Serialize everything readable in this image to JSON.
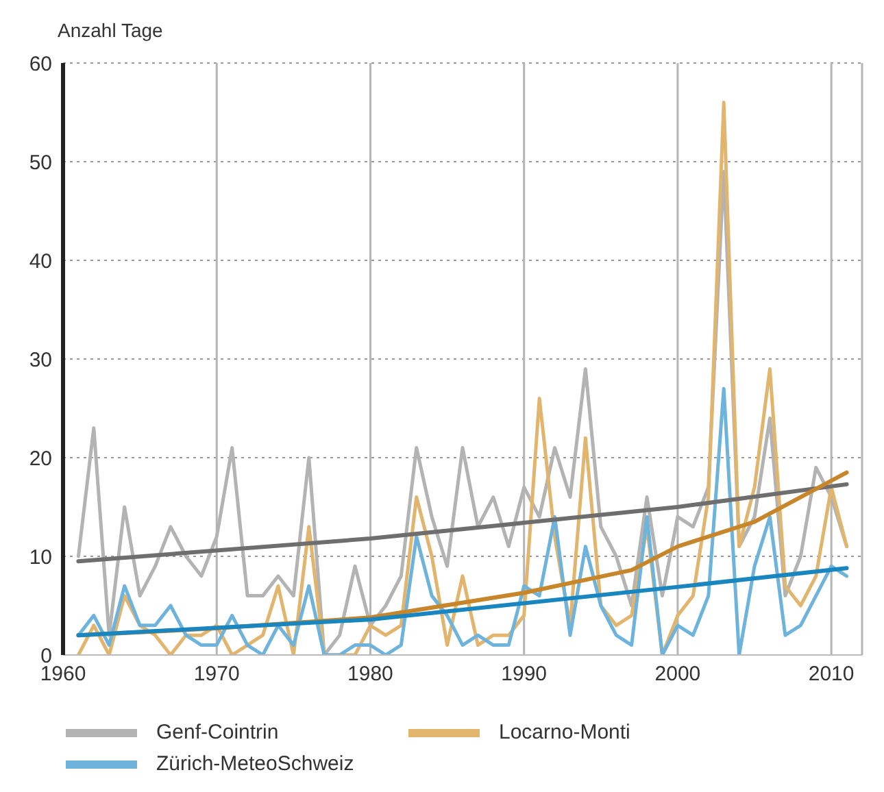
{
  "chart_data": {
    "type": "line",
    "ylabel": "Anzahl Tage",
    "xlim": [
      1960,
      2012
    ],
    "xticks": [
      1960,
      1970,
      1980,
      1990,
      2000,
      2010
    ],
    "ylim": [
      0,
      60
    ],
    "yticks": [
      0,
      10,
      20,
      30,
      40,
      50,
      60
    ],
    "grid": true,
    "legend": "bottom",
    "marker": "none",
    "line_style": "solid",
    "x": [
      1961,
      1962,
      1963,
      1964,
      1965,
      1966,
      1967,
      1968,
      1969,
      1970,
      1971,
      1972,
      1973,
      1974,
      1975,
      1976,
      1977,
      1978,
      1979,
      1980,
      1981,
      1982,
      1983,
      1984,
      1985,
      1986,
      1987,
      1988,
      1989,
      1990,
      1991,
      1992,
      1993,
      1994,
      1995,
      1996,
      1997,
      1998,
      1999,
      2000,
      2001,
      2002,
      2003,
      2004,
      2005,
      2006,
      2007,
      2008,
      2009,
      2010,
      2011
    ],
    "series": [
      {
        "name": "Genf-Cointrin",
        "color": "#b3b3b3",
        "values": [
          10,
          23,
          2,
          15,
          6,
          9,
          13,
          10,
          8,
          12,
          21,
          6,
          6,
          8,
          6,
          20,
          0,
          2,
          9,
          3,
          5,
          8,
          21,
          14,
          9,
          21,
          13,
          16,
          11,
          17,
          14,
          21,
          16,
          29,
          13,
          10,
          5,
          16,
          6,
          14,
          13,
          17,
          49,
          11,
          14,
          24,
          6,
          10,
          19,
          16,
          11
        ]
      },
      {
        "name": "Locarno-Monti",
        "color": "#e2b56e",
        "values": [
          0,
          3,
          0,
          6,
          3,
          2,
          0,
          2,
          2,
          3,
          0,
          1,
          2,
          7,
          0,
          13,
          0,
          0,
          0,
          3,
          2,
          3,
          16,
          10,
          1,
          8,
          1,
          2,
          2,
          4,
          26,
          12,
          3,
          22,
          5,
          3,
          4,
          13,
          0,
          4,
          6,
          16,
          56,
          11,
          17,
          29,
          7,
          5,
          8,
          17,
          11
        ]
      },
      {
        "name": "Zürich-MeteoSchweiz",
        "color": "#6db3dc",
        "values": [
          2,
          4,
          1,
          7,
          3,
          3,
          5,
          2,
          1,
          1,
          4,
          1,
          0,
          3,
          1,
          7,
          0,
          0,
          1,
          1,
          0,
          1,
          12,
          6,
          4,
          1,
          2,
          1,
          1,
          7,
          6,
          14,
          2,
          11,
          5,
          2,
          1,
          14,
          0,
          3,
          2,
          6,
          27,
          0,
          9,
          14,
          2,
          3,
          6,
          9,
          8
        ]
      },
      {
        "type": "line",
        "color": "#6e6e6e",
        "x": [
          1961,
          1980,
          2000,
          2011
        ],
        "values": [
          9.5,
          11.8,
          15,
          17.3
        ]
      },
      {
        "type": "line",
        "color": "#c8862a",
        "x": [
          1961,
          1970,
          1980,
          1990,
          1997,
          2000,
          2005,
          2011
        ],
        "values": [
          2,
          2.7,
          3.8,
          6.3,
          8.6,
          11,
          13.5,
          18.5
        ]
      },
      {
        "type": "line",
        "color": "#1a86c0",
        "x": [
          1961,
          1980,
          2000,
          2011
        ],
        "values": [
          2,
          3.6,
          6.9,
          8.8
        ]
      }
    ]
  }
}
